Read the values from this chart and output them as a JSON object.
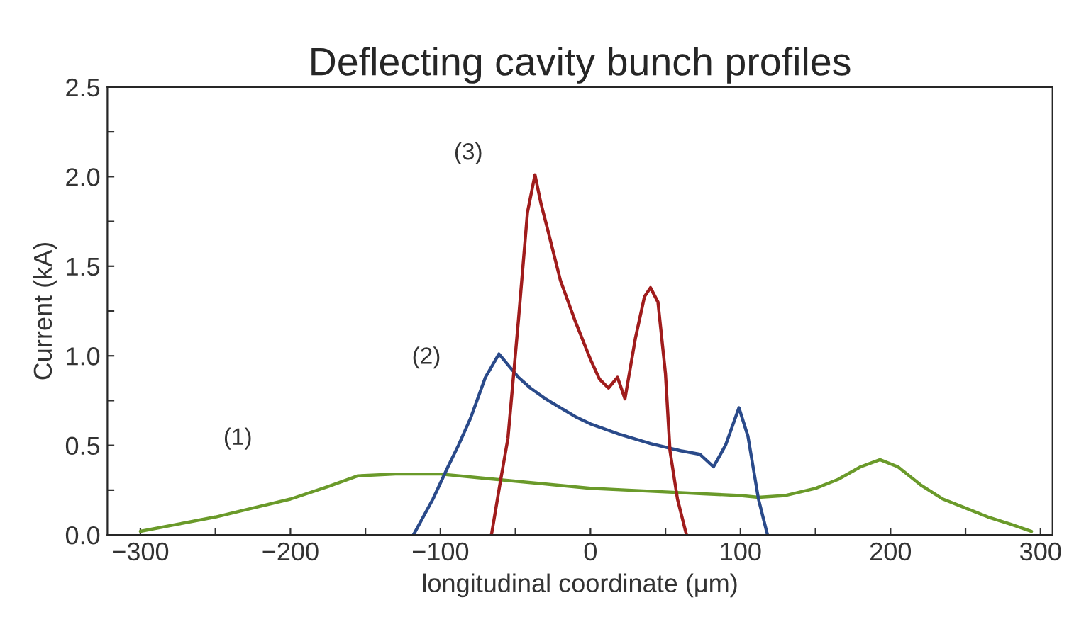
{
  "chart_data": {
    "type": "line",
    "title": "Deflecting cavity bunch profiles",
    "xlabel": "longitudinal coordinate (μm)",
    "ylabel": "Current (kA)",
    "xlim": [
      -322,
      308
    ],
    "ylim": [
      0,
      2.5
    ],
    "xticks": [
      {
        "value": -300,
        "label": "−300"
      },
      {
        "value": -250,
        "label": null
      },
      {
        "value": -200,
        "label": "−200"
      },
      {
        "value": -150,
        "label": null
      },
      {
        "value": -100,
        "label": "−100"
      },
      {
        "value": -50,
        "label": null
      },
      0,
      {
        "value": 50,
        "label": null
      },
      100,
      {
        "value": 150,
        "label": null
      },
      200,
      {
        "value": 250,
        "label": null
      },
      300
    ],
    "yticks": [
      {
        "value": 0,
        "label": "0.0"
      },
      {
        "value": 0.25,
        "label": null
      },
      0.5,
      {
        "value": 0.75,
        "label": null
      },
      {
        "value": 1,
        "label": "1.0"
      },
      {
        "value": 1.25,
        "label": null
      },
      1.5,
      {
        "value": 1.75,
        "label": null
      },
      {
        "value": 2,
        "label": "2.0"
      },
      {
        "value": 2.25,
        "label": null
      },
      2.5
    ],
    "grid": false,
    "legend": false,
    "line_style": "solid",
    "marker": "none",
    "series": [
      {
        "color": "#6a9a2a",
        "x": [
          -300,
          -275,
          -250,
          -225,
          -200,
          -175,
          -155,
          -130,
          -100,
          -75,
          -50,
          -25,
          0,
          25,
          50,
          75,
          100,
          112,
          130,
          150,
          165,
          180,
          193,
          205,
          220,
          235,
          250,
          265,
          280,
          294
        ],
        "values": [
          0.02,
          0.06,
          0.1,
          0.15,
          0.2,
          0.27,
          0.33,
          0.34,
          0.34,
          0.32,
          0.3,
          0.28,
          0.26,
          0.25,
          0.24,
          0.23,
          0.22,
          0.21,
          0.22,
          0.26,
          0.31,
          0.38,
          0.42,
          0.38,
          0.28,
          0.2,
          0.15,
          0.1,
          0.06,
          0.02
        ]
      },
      {
        "color": "#2a4a8a",
        "x": [
          -118,
          -105,
          -95,
          -88,
          -80,
          -70,
          -61,
          -55,
          -48,
          -40,
          -30,
          -20,
          -10,
          0,
          20,
          40,
          60,
          73,
          82,
          90,
          99,
          105,
          112,
          118
        ],
        "values": [
          0.0,
          0.2,
          0.38,
          0.5,
          0.65,
          0.88,
          1.01,
          0.95,
          0.88,
          0.82,
          0.76,
          0.71,
          0.66,
          0.62,
          0.56,
          0.51,
          0.47,
          0.45,
          0.38,
          0.5,
          0.71,
          0.55,
          0.2,
          0.0
        ]
      },
      {
        "color": "#a01c1c",
        "x": [
          -66,
          -60,
          -55,
          -48,
          -42,
          -37,
          -33,
          -29,
          -20,
          -10,
          0,
          6,
          12,
          18,
          23,
          30,
          36,
          40,
          45,
          50,
          53,
          58,
          64
        ],
        "values": [
          0.0,
          0.3,
          0.54,
          1.2,
          1.8,
          2.01,
          1.85,
          1.72,
          1.42,
          1.19,
          0.98,
          0.87,
          0.82,
          0.88,
          0.76,
          1.1,
          1.33,
          1.38,
          1.3,
          0.9,
          0.47,
          0.2,
          0.0
        ]
      }
    ],
    "annotations": [
      "(1)",
      "(2)",
      "(3)"
    ]
  }
}
